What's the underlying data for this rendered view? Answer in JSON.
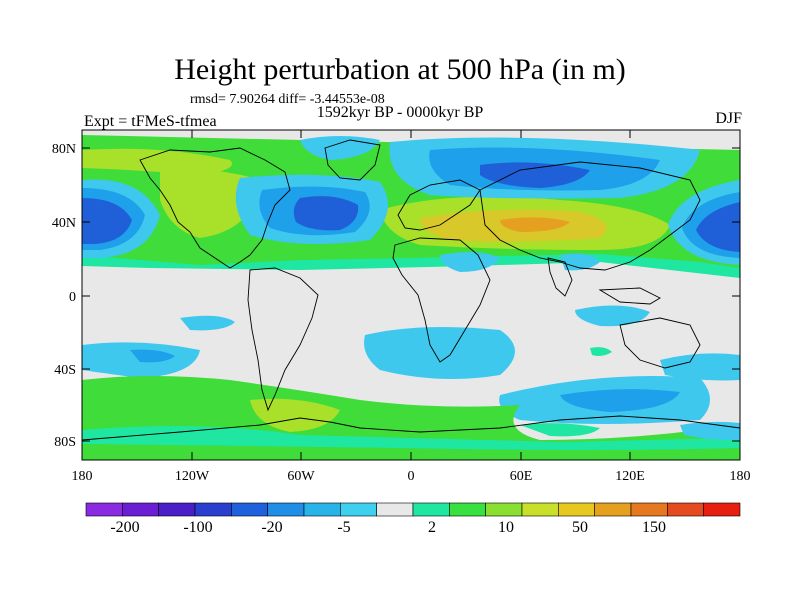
{
  "title": "Height perturbation at 500 hPa (in m)",
  "stats": "rmsd= 7.90264 diff= -3.44553e-08",
  "period": "1592kyr BP - 0000kyr BP",
  "experiment": "Expt = tFMeS-tfmea",
  "season": "DJF",
  "axes": {
    "lat_ticks": [
      "80N",
      "40N",
      "0",
      "40S",
      "80S"
    ],
    "lon_ticks": [
      "180",
      "120W",
      "60W",
      "0",
      "60E",
      "120E",
      "180"
    ]
  },
  "colorbar": {
    "labels": [
      "-200",
      "-100",
      "-20",
      "-5",
      "2",
      "10",
      "50",
      "150"
    ],
    "colors": [
      "#8a2be2",
      "#6a1fd4",
      "#4b1fc8",
      "#2a3fd0",
      "#1f60dc",
      "#1f8ee6",
      "#28b4e8",
      "#3fd0f0",
      "#e8e8e8",
      "#1fe6a0",
      "#38e040",
      "#8ae030",
      "#c8e02a",
      "#e6c81f",
      "#e6a01f",
      "#e6781f",
      "#e64a1f",
      "#e61f10"
    ]
  },
  "colors": {
    "land_outline": "#000000",
    "neutral": "#e8e8e8",
    "green": "#3fdc3a",
    "teal": "#1fe6a0",
    "lime": "#a8e02a",
    "yellow": "#d8c82a",
    "orange": "#e6a01f",
    "light_blue": "#3fc8ee",
    "mid_blue": "#1fa0ea",
    "dark_blue": "#1f5fd8"
  }
}
